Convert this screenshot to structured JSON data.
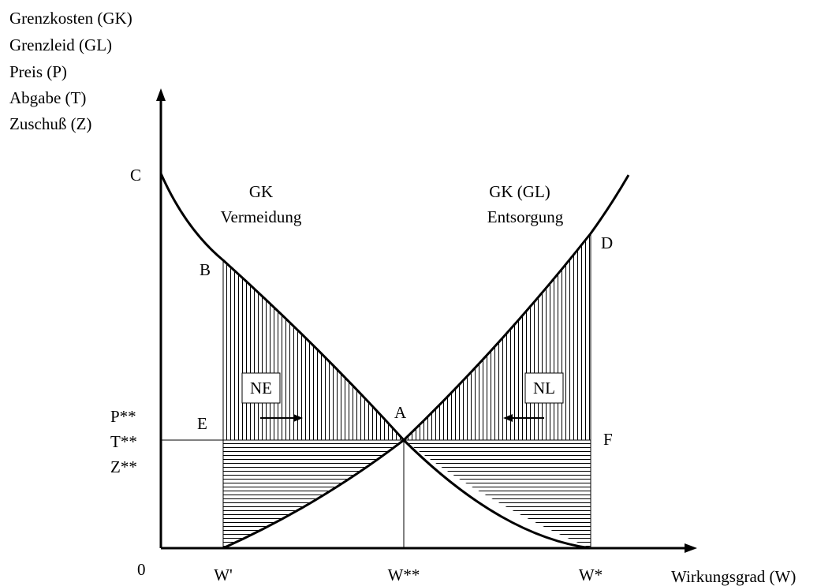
{
  "y_axis_labels": [
    "Grenzkosten (GK)",
    "Grenzleid (GL)",
    "Preis (P)",
    "Abgabe (T)",
    "Zuschuß (Z)"
  ],
  "x_axis_label": "Wirkungsgrad (W)",
  "origin_label": "0",
  "x_ticks": {
    "w_prime": "W'",
    "w_double_star": "W**",
    "w_star": "W*"
  },
  "y_ticks": {
    "p": "P**",
    "t": "T**",
    "z": "Z**"
  },
  "points": {
    "a": "A",
    "b": "B",
    "c": "C",
    "d": "D",
    "e": "E",
    "f": "F"
  },
  "curves": {
    "avoidance_line1": "GK",
    "avoidance_line2": "Vermeidung",
    "disposal_line1": "GK (GL)",
    "disposal_line2": "Entsorgung"
  },
  "areas": {
    "ne": "NE",
    "nl": "NL"
  },
  "colors": {
    "line": "#000000",
    "background": "#ffffff"
  }
}
